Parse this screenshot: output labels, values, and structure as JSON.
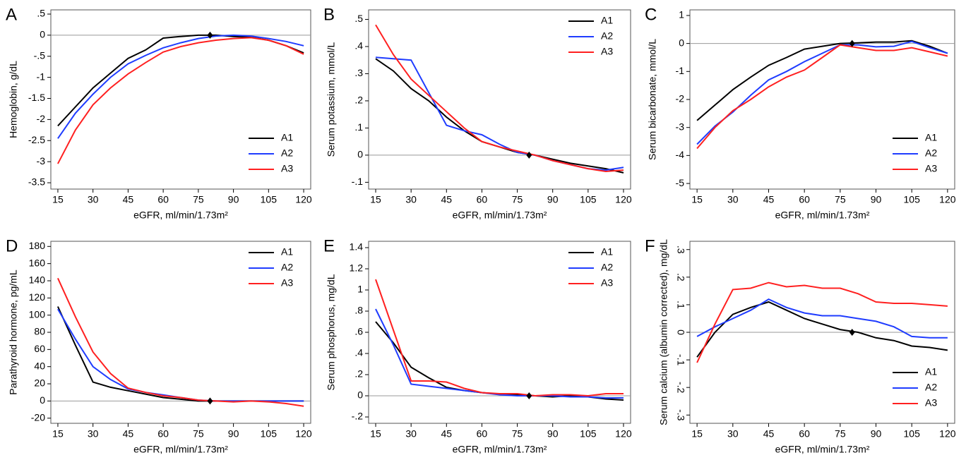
{
  "chart_data": [
    {
      "type": "line",
      "panel": "A",
      "ylabel": "Hemoglobin, g/dL",
      "xlabel": "eGFR, ml/min/1.73m²",
      "x": [
        15,
        22.5,
        30,
        37.5,
        45,
        52.5,
        60,
        67.5,
        75,
        82.5,
        90,
        97.5,
        105,
        112.5,
        120
      ],
      "xlim": [
        12,
        123
      ],
      "xticks": [
        15,
        30,
        45,
        60,
        75,
        90,
        105,
        120
      ],
      "ylim": [
        -3.65,
        0.6
      ],
      "yticks": [
        {
          "value": 0.5,
          "label": ".5"
        },
        0,
        {
          "value": -0.5,
          "label": "-.5"
        },
        -1,
        -1.5,
        -2,
        -2.5,
        -3,
        -3.5
      ],
      "legend": "lower right",
      "reference_point": {
        "x": 80,
        "y": 0
      },
      "series": [
        {
          "name": "A1",
          "color": "#000000",
          "values": [
            -2.15,
            -1.7,
            -1.25,
            -0.9,
            -0.55,
            -0.35,
            -0.07,
            -0.03,
            0,
            0,
            -0.03,
            -0.05,
            -0.12,
            -0.25,
            -0.42
          ]
        },
        {
          "name": "A2",
          "color": "#1f3cff",
          "values": [
            -2.45,
            -1.85,
            -1.4,
            -1.0,
            -0.68,
            -0.48,
            -0.3,
            -0.18,
            -0.08,
            -0.02,
            0,
            -0.02,
            -0.08,
            -0.15,
            -0.25
          ]
        },
        {
          "name": "A3",
          "color": "#ff2020",
          "values": [
            -3.05,
            -2.25,
            -1.65,
            -1.25,
            -0.92,
            -0.65,
            -0.4,
            -0.27,
            -0.18,
            -0.12,
            -0.08,
            -0.06,
            -0.12,
            -0.25,
            -0.45
          ]
        }
      ]
    },
    {
      "type": "line",
      "panel": "B",
      "ylabel": "Serum potassium, mmol/L",
      "xlabel": "eGFR, ml/min/1.73m²",
      "x": [
        15,
        22.5,
        30,
        37.5,
        45,
        52.5,
        60,
        67.5,
        75,
        82.5,
        90,
        97.5,
        105,
        112.5,
        120
      ],
      "xlim": [
        12,
        123
      ],
      "xticks": [
        15,
        30,
        45,
        60,
        75,
        90,
        105,
        120
      ],
      "ylim": [
        -0.125,
        0.535
      ],
      "yticks": [
        {
          "value": 0.5,
          "label": ".5"
        },
        {
          "value": 0.4,
          "label": ".4"
        },
        {
          "value": 0.3,
          "label": ".3"
        },
        {
          "value": 0.2,
          "label": ".2"
        },
        {
          "value": 0.1,
          "label": ".1"
        },
        0,
        {
          "value": -0.1,
          "label": "-.1"
        }
      ],
      "legend": "upper right",
      "reference_point": {
        "x": 80,
        "y": 0
      },
      "series": [
        {
          "name": "A1",
          "color": "#000000",
          "values": [
            0.355,
            0.31,
            0.245,
            0.2,
            0.14,
            0.09,
            0.05,
            0.03,
            0.01,
            0,
            -0.015,
            -0.03,
            -0.04,
            -0.05,
            -0.065
          ]
        },
        {
          "name": "A2",
          "color": "#1f3cff",
          "values": [
            0.36,
            0.355,
            0.35,
            0.23,
            0.11,
            0.09,
            0.075,
            0.04,
            0.01,
            0,
            -0.02,
            -0.035,
            -0.05,
            -0.055,
            -0.045
          ]
        },
        {
          "name": "A3",
          "color": "#ff2020",
          "values": [
            0.48,
            0.37,
            0.28,
            0.22,
            0.16,
            0.1,
            0.05,
            0.03,
            0.015,
            0,
            -0.02,
            -0.035,
            -0.05,
            -0.06,
            -0.055
          ]
        }
      ]
    },
    {
      "type": "line",
      "panel": "C",
      "ylabel": "Serum bicarbonate, mmol/L",
      "xlabel": "eGFR, ml/min/1.73m²",
      "x": [
        15,
        22.5,
        30,
        37.5,
        45,
        52.5,
        60,
        67.5,
        75,
        82.5,
        90,
        97.5,
        105,
        112.5,
        120
      ],
      "xlim": [
        12,
        123
      ],
      "xticks": [
        15,
        30,
        45,
        60,
        75,
        90,
        105,
        120
      ],
      "ylim": [
        -5.2,
        1.2
      ],
      "yticks": [
        1,
        0,
        -1,
        -2,
        -3,
        -4,
        -5
      ],
      "legend": "lower right",
      "reference_point": {
        "x": 80,
        "y": 0
      },
      "series": [
        {
          "name": "A1",
          "color": "#000000",
          "values": [
            -2.75,
            -2.2,
            -1.65,
            -1.2,
            -0.78,
            -0.5,
            -0.2,
            -0.1,
            0,
            0.02,
            0.05,
            0.05,
            0.1,
            -0.1,
            -0.35
          ]
        },
        {
          "name": "A2",
          "color": "#1f3cff",
          "values": [
            -3.6,
            -2.95,
            -2.45,
            -1.85,
            -1.3,
            -1.0,
            -0.65,
            -0.35,
            -0.05,
            -0.05,
            -0.12,
            -0.1,
            0.07,
            -0.15,
            -0.35
          ]
        },
        {
          "name": "A3",
          "color": "#ff2020",
          "values": [
            -3.75,
            -3.0,
            -2.4,
            -2.0,
            -1.55,
            -1.2,
            -0.95,
            -0.5,
            -0.05,
            -0.15,
            -0.25,
            -0.25,
            -0.15,
            -0.3,
            -0.45
          ]
        }
      ]
    },
    {
      "type": "line",
      "panel": "D",
      "ylabel": "Parathyroid hormone, pg/mL",
      "xlabel": "eGFR, ml/min/1.73m²",
      "x": [
        15,
        22.5,
        30,
        37.5,
        45,
        52.5,
        60,
        67.5,
        75,
        82.5,
        90,
        97.5,
        105,
        112.5,
        120
      ],
      "xlim": [
        12,
        123
      ],
      "xticks": [
        15,
        30,
        45,
        60,
        75,
        90,
        105,
        120
      ],
      "ylim": [
        -26,
        186
      ],
      "yticks": [
        180,
        160,
        140,
        120,
        100,
        80,
        60,
        40,
        20,
        0,
        -20
      ],
      "legend": "upper right",
      "reference_point": {
        "x": 80,
        "y": 0
      },
      "series": [
        {
          "name": "A1",
          "color": "#000000",
          "values": [
            110,
            65,
            22,
            16,
            12,
            8,
            4,
            2,
            0,
            0,
            0,
            0,
            0,
            0,
            0
          ]
        },
        {
          "name": "A2",
          "color": "#1f3cff",
          "values": [
            107,
            72,
            40,
            25,
            14,
            10,
            7,
            4,
            1,
            0,
            0,
            0,
            0,
            0,
            0
          ]
        },
        {
          "name": "A3",
          "color": "#ff2020",
          "values": [
            143,
            98,
            57,
            32,
            15,
            10,
            6,
            4,
            1,
            0,
            -1,
            0,
            -1,
            -3,
            -6
          ]
        }
      ]
    },
    {
      "type": "line",
      "panel": "E",
      "ylabel": "Serum phosphorus, mg/dL",
      "xlabel": "eGFR, ml/min/1.73m²",
      "x": [
        15,
        22.5,
        30,
        37.5,
        45,
        52.5,
        60,
        67.5,
        75,
        82.5,
        90,
        97.5,
        105,
        112.5,
        120
      ],
      "xlim": [
        12,
        123
      ],
      "xticks": [
        15,
        30,
        45,
        60,
        75,
        90,
        105,
        120
      ],
      "ylim": [
        -0.26,
        1.46
      ],
      "yticks": [
        1.4,
        1.2,
        1,
        {
          "value": 0.8,
          "label": ".8"
        },
        {
          "value": 0.6,
          "label": ".6"
        },
        {
          "value": 0.4,
          "label": ".4"
        },
        {
          "value": 0.2,
          "label": ".2"
        },
        0,
        {
          "value": -0.2,
          "label": "-.2"
        }
      ],
      "legend": "upper right",
      "reference_point": {
        "x": 80,
        "y": 0
      },
      "series": [
        {
          "name": "A1",
          "color": "#000000",
          "values": [
            0.7,
            0.5,
            0.27,
            0.17,
            0.08,
            0.05,
            0.03,
            0.015,
            0.01,
            0,
            -0.01,
            0,
            -0.01,
            -0.03,
            -0.04
          ]
        },
        {
          "name": "A2",
          "color": "#1f3cff",
          "values": [
            0.82,
            0.48,
            0.11,
            0.09,
            0.07,
            0.05,
            0.03,
            0.01,
            0,
            0,
            0,
            -0.01,
            -0.01,
            -0.02,
            -0.02
          ]
        },
        {
          "name": "A3",
          "color": "#ff2020",
          "values": [
            1.1,
            0.62,
            0.14,
            0.14,
            0.13,
            0.07,
            0.03,
            0.02,
            0.02,
            0,
            0.01,
            0.01,
            0,
            0.02,
            0.02
          ]
        }
      ]
    },
    {
      "type": "line",
      "panel": "F",
      "ylabel": "Serum calcium (albumin corrected), mg/dL",
      "xlabel": "eGFR, ml/min/1.73m²",
      "x": [
        15,
        22.5,
        30,
        37.5,
        45,
        52.5,
        60,
        67.5,
        75,
        82.5,
        90,
        97.5,
        105,
        112.5,
        120
      ],
      "xlim": [
        12,
        123
      ],
      "xticks": [
        15,
        30,
        45,
        60,
        75,
        90,
        105,
        120
      ],
      "ylim": [
        -0.33,
        0.33
      ],
      "yticks": [
        {
          "value": 0.3,
          "label": ".3"
        },
        {
          "value": 0.2,
          "label": ".2"
        },
        {
          "value": 0.1,
          "label": ".1"
        },
        0,
        {
          "value": -0.1,
          "label": "-.1"
        },
        {
          "value": -0.2,
          "label": "-.2"
        },
        {
          "value": -0.3,
          "label": "-.3"
        }
      ],
      "legend": "lower right",
      "reference_point": {
        "x": 80,
        "y": 0
      },
      "series": [
        {
          "name": "A1",
          "color": "#000000",
          "values": [
            -0.09,
            0,
            0.065,
            0.09,
            0.11,
            0.08,
            0.05,
            0.03,
            0.01,
            0,
            -0.02,
            -0.03,
            -0.05,
            -0.055,
            -0.065
          ]
        },
        {
          "name": "A2",
          "color": "#1f3cff",
          "values": [
            -0.015,
            0.02,
            0.05,
            0.08,
            0.12,
            0.09,
            0.07,
            0.06,
            0.06,
            0.05,
            0.04,
            0.02,
            -0.015,
            -0.02,
            -0.02
          ]
        },
        {
          "name": "A3",
          "color": "#ff2020",
          "values": [
            -0.11,
            0.03,
            0.155,
            0.16,
            0.18,
            0.165,
            0.17,
            0.16,
            0.16,
            0.14,
            0.11,
            0.105,
            0.105,
            0.1,
            0.095
          ]
        }
      ]
    }
  ]
}
